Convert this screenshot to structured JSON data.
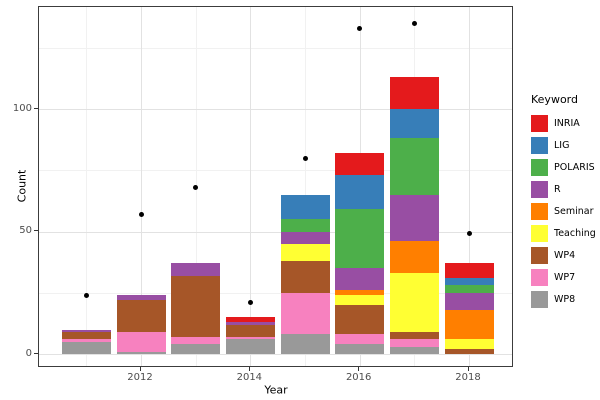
{
  "chart_data": {
    "type": "bar",
    "stacked": true,
    "xlabel": "Year",
    "ylabel": "Count",
    "legend_title": "Keyword",
    "legend_position": "right",
    "grid": true,
    "background": "#ffffff",
    "stack_order_note": "stacked bottom-to-top in reverse legend order (WP8 bottom, INRIA top)",
    "categories": [
      2011,
      2012,
      2013,
      2014,
      2015,
      2016,
      2017,
      2018
    ],
    "series": [
      {
        "name": "INRIA",
        "color": "#E41A1C",
        "values": [
          0,
          0,
          0,
          2,
          0,
          9,
          13,
          6
        ]
      },
      {
        "name": "LIG",
        "color": "#377EB8",
        "values": [
          0,
          0,
          0,
          0,
          10,
          14,
          12,
          3
        ]
      },
      {
        "name": "POLARIS",
        "color": "#4DAF4A",
        "values": [
          0,
          0,
          0,
          0,
          5,
          24,
          23,
          3
        ]
      },
      {
        "name": "R",
        "color": "#984EA3",
        "values": [
          1,
          2,
          5,
          1,
          5,
          9,
          19,
          7
        ]
      },
      {
        "name": "Seminar",
        "color": "#FF7F00",
        "values": [
          0,
          0,
          0,
          0,
          0,
          2,
          13,
          12
        ]
      },
      {
        "name": "Teaching",
        "color": "#FFFF33",
        "values": [
          0,
          0,
          0,
          0,
          7,
          4,
          24,
          4
        ]
      },
      {
        "name": "WP4",
        "color": "#A65628",
        "values": [
          3,
          13,
          25,
          5,
          13,
          12,
          3,
          2
        ]
      },
      {
        "name": "WP7",
        "color": "#F781BF",
        "values": [
          1,
          8,
          3,
          1,
          17,
          4,
          3,
          0
        ]
      },
      {
        "name": "WP8",
        "color": "#999999",
        "values": [
          5,
          1,
          4,
          6,
          8,
          4,
          3,
          0
        ]
      }
    ],
    "points": {
      "color": "#000000",
      "values": [
        24,
        57,
        68,
        21,
        80,
        133,
        135,
        49
      ]
    },
    "y_axis": {
      "major_ticks": [
        0,
        50,
        100
      ],
      "minor_gridlines": [
        25,
        75,
        125
      ],
      "lim": [
        0,
        141
      ]
    },
    "x_axis": {
      "major_ticks": [
        2012,
        2014,
        2016,
        2018
      ],
      "minor_gridlines": [
        2011,
        2013,
        2015,
        2017
      ]
    }
  }
}
